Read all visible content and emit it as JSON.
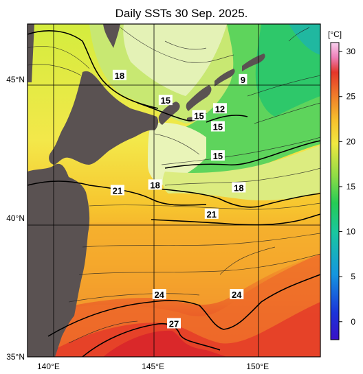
{
  "title": "Daily SSTs 30 Sep. 2025.",
  "axes": {
    "x_ticks": [
      {
        "lon": 140,
        "label": "140°E"
      },
      {
        "lon": 145,
        "label": "145°E"
      },
      {
        "lon": 150,
        "label": "150°E"
      }
    ],
    "y_ticks": [
      {
        "lat": 45,
        "label": "45°N"
      },
      {
        "lat": 40,
        "label": "40°N"
      },
      {
        "lat": 35,
        "label": "35°N"
      }
    ],
    "lon_range": [
      139,
      153
    ],
    "lat_range": [
      35,
      47
    ]
  },
  "colorbar": {
    "unit_label": "[°C]",
    "ticks": [
      "30",
      "25",
      "20",
      "15",
      "10",
      "5",
      "0"
    ],
    "range": [
      -2,
      31
    ],
    "colors": [
      "#2a00b0",
      "#1f3fd6",
      "#1596e0",
      "#17c9a8",
      "#1ec85a",
      "#7cd84a",
      "#d6ea40",
      "#f6de30",
      "#f7b52a",
      "#f08a2a",
      "#e8452a",
      "#e02a2a",
      "#f48ec0",
      "#f6c4e8"
    ]
  },
  "contour_labels": [
    {
      "text": "9",
      "lon": 149.3,
      "lat": 45.0
    },
    {
      "text": "12",
      "lon": 148.2,
      "lat": 43.95
    },
    {
      "text": "15",
      "lon": 145.6,
      "lat": 44.25
    },
    {
      "text": "15",
      "lon": 147.2,
      "lat": 43.7
    },
    {
      "text": "15",
      "lon": 148.1,
      "lat": 43.3
    },
    {
      "text": "15",
      "lon": 148.1,
      "lat": 42.25
    },
    {
      "text": "18",
      "lon": 143.4,
      "lat": 45.15
    },
    {
      "text": "18",
      "lon": 145.1,
      "lat": 41.2
    },
    {
      "text": "18",
      "lon": 149.1,
      "lat": 41.1
    },
    {
      "text": "21",
      "lon": 143.3,
      "lat": 41.0
    },
    {
      "text": "21",
      "lon": 147.8,
      "lat": 40.15
    },
    {
      "text": "24",
      "lon": 145.3,
      "lat": 37.25
    },
    {
      "text": "24",
      "lon": 149.0,
      "lat": 37.25
    },
    {
      "text": "27",
      "lon": 146.0,
      "lat": 36.2
    }
  ]
}
